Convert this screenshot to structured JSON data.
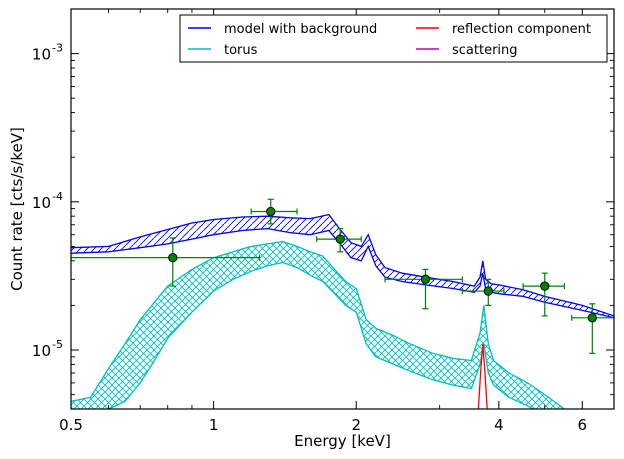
{
  "chart_data": {
    "type": "line",
    "xlabel": "Energy [keV]",
    "ylabel": "Count rate [cts/s/keV]",
    "x_scale": "log",
    "y_scale": "log",
    "xlim": [
      0.5,
      7.0
    ],
    "ylim": [
      4e-06,
      0.002
    ],
    "grid": false,
    "legend_position": "top-right",
    "x_ticks": [
      {
        "value": 0.5,
        "label": "0.5"
      },
      {
        "value": 1,
        "label": "1"
      },
      {
        "value": 2,
        "label": "2"
      },
      {
        "value": 4,
        "label": "4"
      },
      {
        "value": 6,
        "label": "6"
      }
    ],
    "y_ticks": [
      {
        "value": 1e-05,
        "label": "10",
        "exp": "-5"
      },
      {
        "value": 0.0001,
        "label": "10",
        "exp": "-4"
      },
      {
        "value": 0.001,
        "label": "10",
        "exp": "-3"
      }
    ],
    "legend": [
      {
        "name": "model with background",
        "color": "#0000ff"
      },
      {
        "name": "reflection component",
        "color": "#ff0000"
      },
      {
        "name": "torus",
        "color": "#00bfbf"
      },
      {
        "name": "scattering",
        "color": "#bf00bf"
      }
    ],
    "series": [
      {
        "name": "model with background",
        "kind": "band",
        "color": "#0000ff",
        "hatch": "diagonal",
        "x": [
          0.5,
          0.6,
          0.7,
          0.8,
          0.9,
          1.0,
          1.15,
          1.3,
          1.45,
          1.6,
          1.75,
          1.85,
          1.95,
          2.05,
          2.12,
          2.2,
          2.3,
          2.5,
          2.8,
          3.2,
          3.55,
          3.65,
          3.7,
          3.75,
          3.85,
          4.0,
          4.5,
          5.0,
          6.0,
          7.0
        ],
        "upper": [
          4.9e-05,
          5e-05,
          5.8e-05,
          6.5e-05,
          7.2e-05,
          7.6e-05,
          7.9e-05,
          8e-05,
          7.8e-05,
          7.7e-05,
          8.2e-05,
          6.5e-05,
          5.3e-05,
          5e-05,
          6e-05,
          4.4e-05,
          3.6e-05,
          3.3e-05,
          3.1e-05,
          2.9e-05,
          2.7e-05,
          3.1e-05,
          4e-05,
          3e-05,
          2.8e-05,
          2.75e-05,
          2.55e-05,
          2.3e-05,
          2e-05,
          1.7e-05
        ],
        "lower": [
          4.5e-05,
          4.6e-05,
          4.9e-05,
          5.2e-05,
          5.6e-05,
          6e-05,
          6.4e-05,
          6.6e-05,
          6.2e-05,
          6e-05,
          6.4e-05,
          5.2e-05,
          4.2e-05,
          4e-05,
          5e-05,
          3.7e-05,
          3.1e-05,
          2.9e-05,
          2.75e-05,
          2.6e-05,
          2.45e-05,
          2.7e-05,
          3.3e-05,
          2.6e-05,
          2.45e-05,
          2.4e-05,
          2.3e-05,
          2.1e-05,
          1.85e-05,
          1.65e-05
        ]
      },
      {
        "name": "torus",
        "kind": "band",
        "color": "#00bfbf",
        "hatch": "cross",
        "x": [
          0.5,
          0.55,
          0.6,
          0.65,
          0.7,
          0.75,
          0.8,
          0.9,
          1.0,
          1.1,
          1.2,
          1.3,
          1.4,
          1.5,
          1.6,
          1.7,
          1.8,
          1.9,
          2.0,
          2.1,
          2.2,
          2.4,
          2.6,
          2.9,
          3.2,
          3.5,
          3.65,
          3.72,
          3.8,
          3.9,
          4.2,
          4.6,
          5.0,
          5.5
        ],
        "upper": [
          4.5e-06,
          4.8e-06,
          7.5e-06,
          1.1e-05,
          1.6e-05,
          2.1e-05,
          2.7e-05,
          3.5e-05,
          4.2e-05,
          4.6e-05,
          5e-05,
          5.2e-05,
          5.4e-05,
          5e-05,
          4.6e-05,
          4.3e-05,
          3.5e-05,
          2.9e-05,
          2.6e-05,
          1.6e-05,
          1.4e-05,
          1.25e-05,
          1.1e-05,
          9.5e-06,
          8.8e-06,
          8.5e-06,
          1.3e-05,
          2e-05,
          1.1e-05,
          8.5e-06,
          7e-06,
          6e-06,
          5e-06,
          4e-06
        ],
        "lower": [
          3.5e-06,
          3.6e-06,
          4e-06,
          4.5e-06,
          6e-06,
          8.5e-06,
          1.2e-05,
          1.8e-05,
          2.5e-05,
          3e-05,
          3.4e-05,
          3.7e-05,
          3.9e-05,
          3.6e-05,
          3.2e-05,
          2.9e-05,
          2.4e-05,
          2e-05,
          1.8e-05,
          1.1e-05,
          9e-06,
          8e-06,
          7.2e-06,
          6.3e-06,
          5.8e-06,
          5.5e-06,
          8e-06,
          1.1e-05,
          7e-06,
          5.8e-06,
          4.8e-06,
          4.2e-06,
          3.6e-06,
          3e-06
        ]
      },
      {
        "name": "reflection component",
        "kind": "band",
        "color": "#ff0000",
        "hatch": "none",
        "x": [
          3.6,
          3.66,
          3.7,
          3.74,
          3.8
        ],
        "upper": [
          3e-06,
          7e-06,
          1.1e-05,
          7e-06,
          3e-06
        ],
        "lower": [
          3e-06,
          3e-06,
          3e-06,
          3e-06,
          3e-06
        ]
      },
      {
        "name": "data",
        "kind": "points",
        "color": "#008000",
        "points": [
          {
            "x": 0.82,
            "xerr": [
              0.32,
              0.43
            ],
            "y": 4.2e-05,
            "yerr": [
              1.5e-05,
              1.5e-05
            ]
          },
          {
            "x": 1.32,
            "xerr": [
              0.12,
              0.18
            ],
            "y": 8.6e-05,
            "yerr": [
              1.5e-05,
              1.8e-05
            ]
          },
          {
            "x": 1.85,
            "xerr": [
              0.2,
              0.2
            ],
            "y": 5.6e-05,
            "yerr": [
              1e-05,
              1e-05
            ]
          },
          {
            "x": 2.8,
            "xerr": [
              0.5,
              0.55
            ],
            "y": 3e-05,
            "yerr": [
              1.1e-05,
              5e-06
            ]
          },
          {
            "x": 3.8,
            "xerr": [
              0.45,
              0.3
            ],
            "y": 2.5e-05,
            "yerr": [
              5e-06,
              5e-06
            ]
          },
          {
            "x": 5.0,
            "xerr": [
              0.5,
              0.5
            ],
            "y": 2.7e-05,
            "yerr": [
              1e-05,
              6e-06
            ]
          },
          {
            "x": 6.3,
            "xerr": [
              0.6,
              0.7
            ],
            "y": 1.65e-05,
            "yerr": [
              7e-06,
              4e-06
            ]
          }
        ]
      }
    ]
  }
}
